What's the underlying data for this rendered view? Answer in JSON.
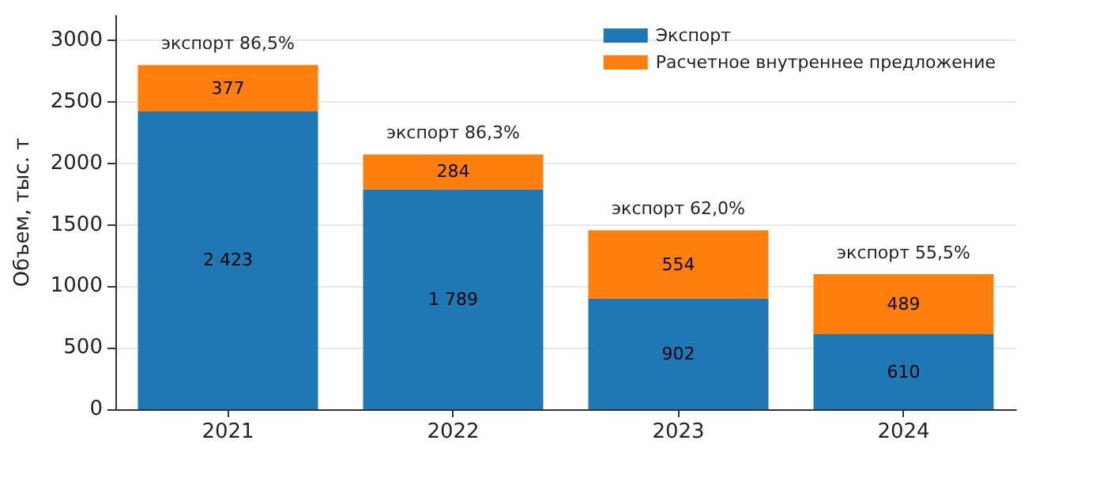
{
  "chart_data": {
    "type": "bar",
    "ylabel": "Объем, тыс. т",
    "categories": [
      "2021",
      "2022",
      "2023",
      "2024"
    ],
    "stacked": true,
    "series": [
      {
        "name": "Экспорт",
        "color": "#1f77b4",
        "values": [
          2423,
          1789,
          902,
          610
        ],
        "value_labels": [
          "2 423",
          "1 789",
          "902",
          "610"
        ]
      },
      {
        "name": "Расчетное внутреннее предложение",
        "color": "#ff7f0e",
        "values": [
          377,
          284,
          554,
          489
        ],
        "value_labels": [
          "377",
          "284",
          "554",
          "489"
        ]
      }
    ],
    "ylim": [
      0,
      3200
    ],
    "yticks": [
      0,
      500,
      1000,
      1500,
      2000,
      2500,
      3000
    ],
    "grid": "y",
    "legend": "top right",
    "annotations": [
      {
        "text": "экспорт 86,5%",
        "x": "2021",
        "y": 2800
      },
      {
        "text": "экспорт 86,3%",
        "x": "2022",
        "y": 2073
      },
      {
        "text": "экспорт 62,0%",
        "x": "2023",
        "y": 1456
      },
      {
        "text": "экспорт 55,5%",
        "x": "2024",
        "y": 1099
      }
    ]
  }
}
